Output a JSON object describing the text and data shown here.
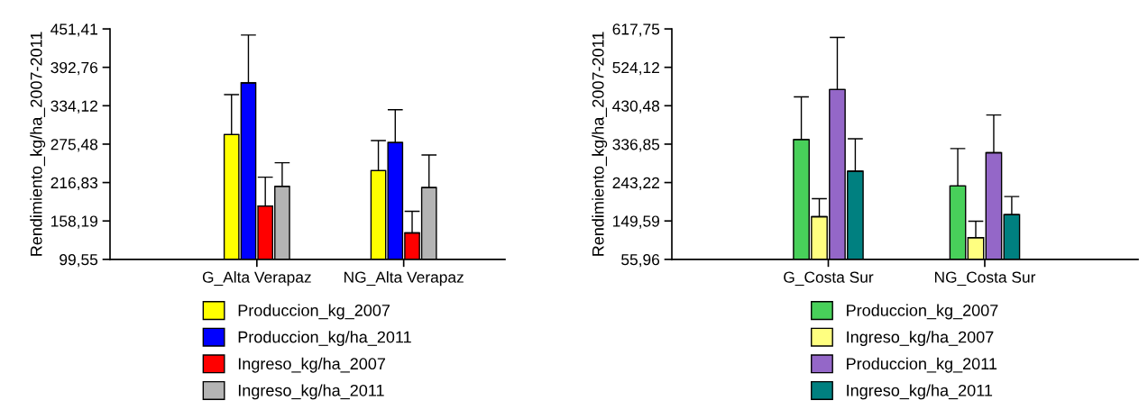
{
  "chart_data": [
    {
      "type": "bar",
      "ylabel": "Rendimiento_kg/ha_2007-2011",
      "categories": [
        "G_Alta Verapaz",
        "NG_Alta Verapaz"
      ],
      "ylim": [
        99.55,
        451.41
      ],
      "yticks": [
        {
          "value": 99.55,
          "label": "99,55"
        },
        {
          "value": 158.19,
          "label": "158,19"
        },
        {
          "value": 216.83,
          "label": "216,83"
        },
        {
          "value": 275.48,
          "label": "275,48"
        },
        {
          "value": 334.12,
          "label": "334,12"
        },
        {
          "value": 392.76,
          "label": "392,76"
        },
        {
          "value": 451.41,
          "label": "451,41"
        }
      ],
      "grid": false,
      "legend": "bottom",
      "series": [
        {
          "name": "Produccion_kg_2007",
          "color": "#ffff00",
          "values": [
            290,
            235
          ],
          "errors": [
            [
              290,
              351
            ],
            [
              235,
              281
            ]
          ]
        },
        {
          "name": "Produccion_kg/ha_2011",
          "color": "#0000ff",
          "values": [
            369,
            278
          ],
          "errors": [
            [
              369,
              442
            ],
            [
              278,
              328
            ]
          ]
        },
        {
          "name": "Ingreso_kg/ha_2007",
          "color": "#ff0000",
          "values": [
            181,
            140
          ],
          "errors": [
            [
              181,
              225
            ],
            [
              140,
              173
            ]
          ]
        },
        {
          "name": "Ingreso_kg/ha_2011",
          "color": "#b4b4b4",
          "values": [
            211,
            209
          ],
          "errors": [
            [
              211,
              247
            ],
            [
              209,
              259
            ]
          ]
        }
      ]
    },
    {
      "type": "bar",
      "ylabel": "Rendimiento_kg/ha_2007-2011",
      "categories": [
        "G_Costa Sur",
        "NG_Costa Sur"
      ],
      "ylim": [
        55.96,
        617.75
      ],
      "yticks": [
        {
          "value": 55.96,
          "label": "55,96"
        },
        {
          "value": 149.59,
          "label": "149,59"
        },
        {
          "value": 243.22,
          "label": "243,22"
        },
        {
          "value": 336.85,
          "label": "336,85"
        },
        {
          "value": 430.48,
          "label": "430,48"
        },
        {
          "value": 524.12,
          "label": "524,12"
        },
        {
          "value": 617.75,
          "label": "617,75"
        }
      ],
      "grid": false,
      "legend": "bottom",
      "series": [
        {
          "name": "Produccion_kg_2007",
          "color": "#48d05a",
          "values": [
            348,
            235
          ],
          "errors": [
            [
              348,
              452
            ],
            [
              235,
              326
            ]
          ]
        },
        {
          "name": "Ingreso_kg/ha_2007",
          "color": "#ffff80",
          "values": [
            160,
            109
          ],
          "errors": [
            [
              160,
              204
            ],
            [
              109,
              149
            ]
          ]
        },
        {
          "name": "Produccion_kg_2011",
          "color": "#9467c8",
          "values": [
            470,
            316
          ],
          "errors": [
            [
              470,
              597
            ],
            [
              316,
              408
            ]
          ]
        },
        {
          "name": "Ingreso_kg/ha_2011",
          "color": "#008080",
          "values": [
            271,
            165
          ],
          "errors": [
            [
              271,
              350
            ],
            [
              165,
              209
            ]
          ]
        }
      ]
    }
  ]
}
